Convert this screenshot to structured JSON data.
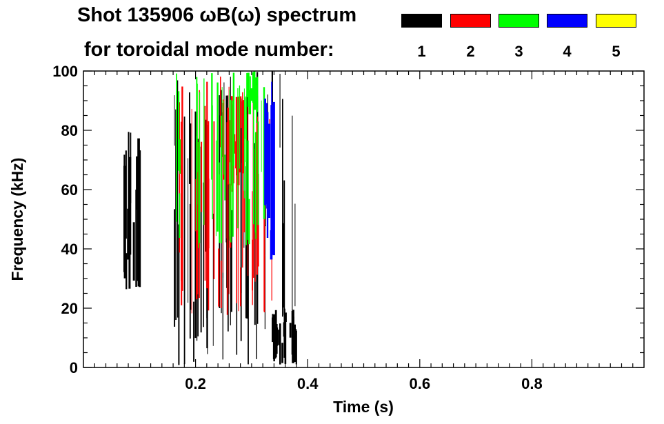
{
  "chart_data": {
    "type": "heatmap",
    "title": "Shot 135906 ωB(ω) spectrum",
    "subtitle": "for toroidal mode number:",
    "xlabel": "Time (s)",
    "ylabel": "Frequency (kHz)",
    "xlim": [
      0.0,
      1.0
    ],
    "ylim": [
      0,
      100
    ],
    "xticks": [
      0.2,
      0.4,
      0.6,
      0.8
    ],
    "xtick_labels": [
      "0.2",
      "0.4",
      "0.6",
      "0.8"
    ],
    "yticks": [
      0,
      20,
      40,
      60,
      80,
      100
    ],
    "ytick_labels": [
      "0",
      "20",
      "40",
      "60",
      "80",
      "100"
    ],
    "legend_placement": "top-right",
    "legend": [
      {
        "label": "1",
        "color": "#000000"
      },
      {
        "label": "2",
        "color": "#ff0000"
      },
      {
        "label": "3",
        "color": "#00ff00"
      },
      {
        "label": "4",
        "color": "#0000ff"
      },
      {
        "label": "5",
        "color": "#ffff00"
      }
    ],
    "activity_regions": [
      {
        "mode": "1",
        "t_start": 0.07,
        "t_end": 0.1,
        "f_low": 25,
        "f_high": 80
      },
      {
        "mode": "1",
        "t_start": 0.16,
        "t_end": 0.38,
        "f_low": 0,
        "f_high": 100
      },
      {
        "mode": "1",
        "t_start": 0.335,
        "t_end": 0.38,
        "f_low": 1,
        "f_high": 20
      },
      {
        "mode": "2",
        "t_start": 0.17,
        "t_end": 0.34,
        "f_low": 17,
        "f_high": 100
      },
      {
        "mode": "2",
        "t_start": 0.255,
        "t_end": 0.285,
        "f_low": 60,
        "f_high": 92
      },
      {
        "mode": "3",
        "t_start": 0.16,
        "t_end": 0.33,
        "f_low": 40,
        "f_high": 100
      },
      {
        "mode": "3",
        "t_start": 0.29,
        "t_end": 0.31,
        "f_low": 85,
        "f_high": 100
      },
      {
        "mode": "4",
        "t_start": 0.32,
        "t_end": 0.34,
        "f_low": 35,
        "f_high": 100
      }
    ]
  }
}
